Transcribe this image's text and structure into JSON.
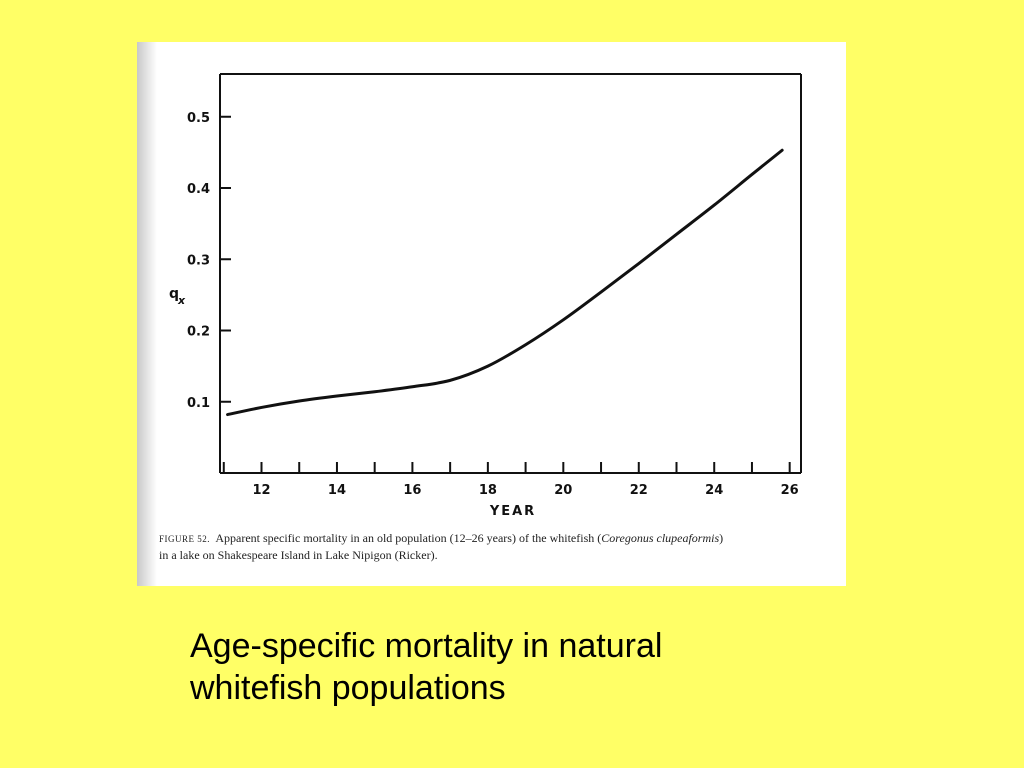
{
  "slide": {
    "background": "#ffff66",
    "text_line1": "Age-specific mortality in natural",
    "text_line2": "whitefish populations"
  },
  "figure": {
    "caption_label": "FIGURE 52.",
    "caption_text_1": "Apparent specific mortality in an old population (12–26 years) of the whitefish (",
    "caption_species": "Coregonus clupeaformis",
    "caption_text_2": ")",
    "caption_line2": "in a lake on Shakespeare Island in Lake Nipigon (Ricker)."
  },
  "chart_data": {
    "type": "line",
    "xlabel": "YEAR",
    "ylabel": "q",
    "ylabel_sub": "x",
    "xlim": [
      10.9,
      26.3
    ],
    "ylim": [
      0.0,
      0.56
    ],
    "x_ticks": [
      11,
      12,
      13,
      14,
      15,
      16,
      17,
      18,
      19,
      20,
      21,
      22,
      23,
      24,
      25,
      26
    ],
    "x_tick_labels": [
      "12",
      "14",
      "16",
      "18",
      "20",
      "22",
      "24",
      "26"
    ],
    "x_tick_label_values": [
      12,
      14,
      16,
      18,
      20,
      22,
      24,
      26
    ],
    "y_ticks": [
      0.1,
      0.2,
      0.3,
      0.4,
      0.5
    ],
    "y_tick_labels": [
      "0.1",
      "0.2",
      "0.3",
      "0.4",
      "0.5"
    ],
    "grid": false,
    "series": [
      {
        "x": [
          11.1,
          12,
          13,
          14,
          15,
          16,
          17,
          18,
          19,
          20,
          21,
          22,
          23,
          24,
          25,
          25.8
        ],
        "y": [
          0.082,
          0.092,
          0.101,
          0.108,
          0.114,
          0.121,
          0.13,
          0.15,
          0.18,
          0.215,
          0.254,
          0.294,
          0.335,
          0.376,
          0.419,
          0.453
        ]
      }
    ]
  }
}
